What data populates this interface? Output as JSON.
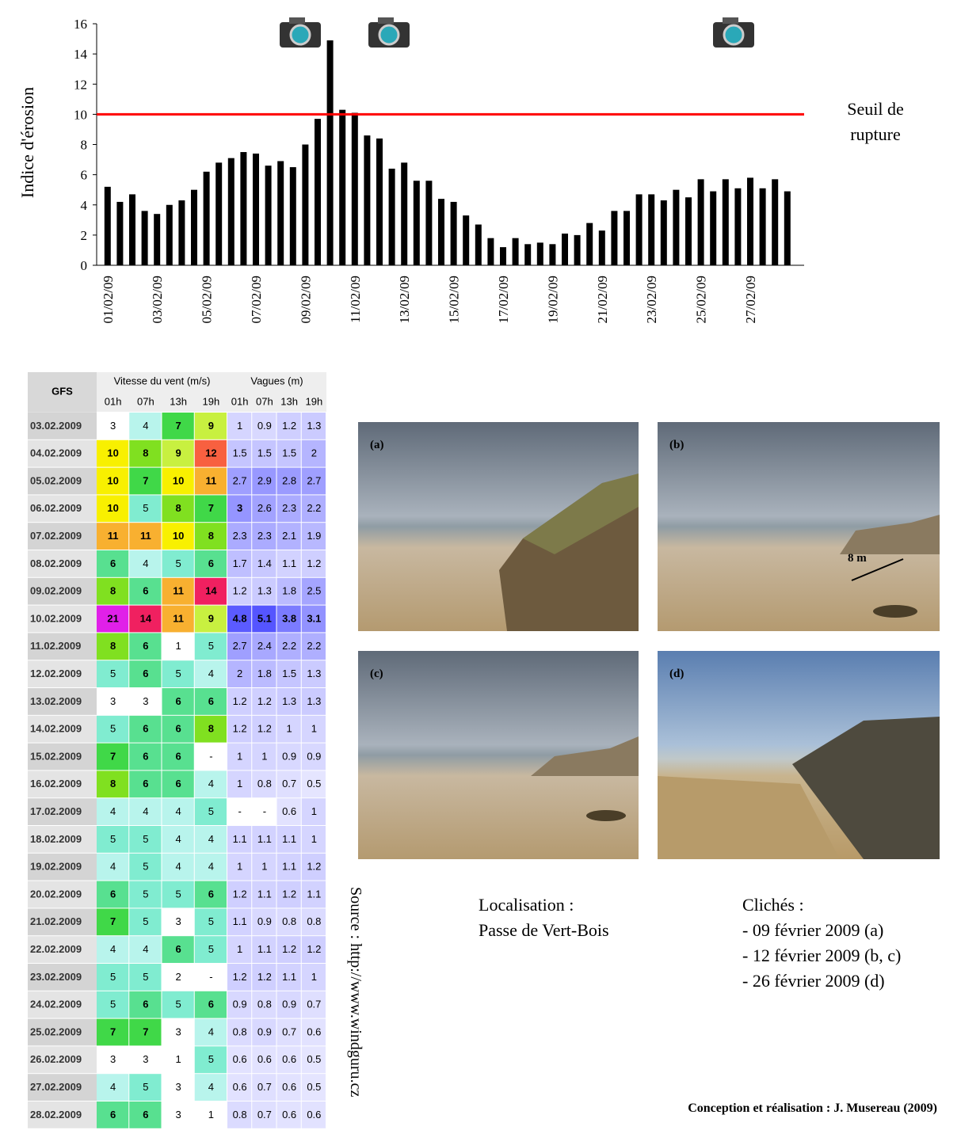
{
  "chart_data": {
    "type": "bar",
    "ylabel": "Indice d'érosion",
    "categories": [
      "01/02/09",
      null,
      null,
      null,
      "03/02/09",
      null,
      null,
      null,
      "05/02/09",
      null,
      null,
      null,
      "07/02/09",
      null,
      null,
      null,
      "09/02/09",
      null,
      null,
      null,
      "11/02/09",
      null,
      null,
      null,
      "13/02/09",
      null,
      null,
      null,
      "15/02/09",
      null,
      null,
      null,
      "17/02/09",
      null,
      null,
      null,
      "19/02/09",
      null,
      null,
      null,
      "21/02/09",
      null,
      null,
      null,
      "23/02/09",
      null,
      null,
      null,
      "25/02/09",
      null,
      null,
      null,
      "27/02/09",
      null,
      null,
      null
    ],
    "values": [
      5.2,
      4.2,
      4.7,
      3.6,
      3.4,
      4.0,
      4.3,
      5.0,
      6.2,
      6.8,
      7.1,
      7.5,
      7.4,
      6.6,
      6.9,
      6.5,
      8.0,
      9.7,
      14.9,
      10.3,
      10.1,
      8.6,
      8.4,
      6.4,
      6.8,
      5.6,
      5.6,
      4.4,
      4.2,
      3.3,
      2.7,
      1.8,
      1.2,
      1.8,
      1.4,
      1.5,
      1.4,
      2.1,
      2.0,
      2.8,
      2.3,
      3.6,
      3.6,
      4.7,
      4.7,
      4.3,
      5.0,
      4.5,
      5.7,
      4.9,
      5.7,
      5.1,
      5.8,
      5.1,
      5.7,
      4.9
    ],
    "color": "#000000",
    "ylim": [
      0,
      16
    ],
    "yticks": [
      0,
      2,
      4,
      6,
      8,
      10,
      12,
      14,
      16
    ],
    "threshold": {
      "value": 10,
      "color": "#ff0000",
      "label_lines": [
        "Seuil de",
        "rupture"
      ]
    }
  },
  "table": {
    "corner": "GFS",
    "groups": [
      "Vitesse du vent (m/s)",
      "Vagues (m)"
    ],
    "hours": [
      "01h",
      "07h",
      "13h",
      "19h"
    ],
    "rows": [
      {
        "date": "03.02.2009",
        "wind": [
          3,
          4,
          7,
          9
        ],
        "waves": [
          1,
          0.9,
          1.2,
          1.3
        ]
      },
      {
        "date": "04.02.2009",
        "wind": [
          10,
          8,
          9,
          12
        ],
        "waves": [
          1.5,
          1.5,
          1.5,
          2
        ]
      },
      {
        "date": "05.02.2009",
        "wind": [
          10,
          7,
          10,
          11
        ],
        "waves": [
          2.7,
          2.9,
          2.8,
          2.7
        ]
      },
      {
        "date": "06.02.2009",
        "wind": [
          10,
          5,
          8,
          7
        ],
        "waves": [
          3,
          2.6,
          2.3,
          2.2
        ]
      },
      {
        "date": "07.02.2009",
        "wind": [
          11,
          11,
          10,
          8
        ],
        "waves": [
          2.3,
          2.3,
          2.1,
          1.9
        ]
      },
      {
        "date": "08.02.2009",
        "wind": [
          6,
          4,
          5,
          6
        ],
        "waves": [
          1.7,
          1.4,
          1.1,
          1.2
        ]
      },
      {
        "date": "09.02.2009",
        "wind": [
          8,
          6,
          11,
          14
        ],
        "waves": [
          1.2,
          1.3,
          1.8,
          2.5
        ]
      },
      {
        "date": "10.02.2009",
        "wind": [
          21,
          14,
          11,
          9
        ],
        "waves": [
          4.8,
          5.1,
          3.8,
          3.1
        ]
      },
      {
        "date": "11.02.2009",
        "wind": [
          8,
          6,
          1,
          5
        ],
        "waves": [
          2.7,
          2.4,
          2.2,
          2.2
        ]
      },
      {
        "date": "12.02.2009",
        "wind": [
          5,
          6,
          5,
          4
        ],
        "waves": [
          2,
          1.8,
          1.5,
          1.3
        ]
      },
      {
        "date": "13.02.2009",
        "wind": [
          3,
          3,
          6,
          6
        ],
        "waves": [
          1.2,
          1.2,
          1.3,
          1.3
        ]
      },
      {
        "date": "14.02.2009",
        "wind": [
          5,
          6,
          6,
          8
        ],
        "waves": [
          1.2,
          1.2,
          1,
          1
        ]
      },
      {
        "date": "15.02.2009",
        "wind": [
          7,
          6,
          6,
          "-"
        ],
        "waves": [
          1,
          1,
          0.9,
          0.9
        ]
      },
      {
        "date": "16.02.2009",
        "wind": [
          8,
          6,
          6,
          4
        ],
        "waves": [
          1,
          0.8,
          0.7,
          0.5
        ]
      },
      {
        "date": "17.02.2009",
        "wind": [
          4,
          4,
          4,
          5
        ],
        "waves": [
          "-",
          "-",
          0.6,
          1
        ]
      },
      {
        "date": "18.02.2009",
        "wind": [
          5,
          5,
          4,
          4
        ],
        "waves": [
          1.1,
          1.1,
          1.1,
          1
        ]
      },
      {
        "date": "19.02.2009",
        "wind": [
          4,
          5,
          4,
          4
        ],
        "waves": [
          1,
          1,
          1.1,
          1.2
        ]
      },
      {
        "date": "20.02.2009",
        "wind": [
          6,
          5,
          5,
          6
        ],
        "waves": [
          1.2,
          1.1,
          1.2,
          1.1
        ]
      },
      {
        "date": "21.02.2009",
        "wind": [
          7,
          5,
          3,
          5
        ],
        "waves": [
          1.1,
          0.9,
          0.8,
          0.8
        ]
      },
      {
        "date": "22.02.2009",
        "wind": [
          4,
          4,
          6,
          5
        ],
        "waves": [
          1,
          1.1,
          1.2,
          1.2
        ]
      },
      {
        "date": "23.02.2009",
        "wind": [
          5,
          5,
          2,
          "-"
        ],
        "waves": [
          1.2,
          1.2,
          1.1,
          1
        ]
      },
      {
        "date": "24.02.2009",
        "wind": [
          5,
          6,
          5,
          6
        ],
        "waves": [
          0.9,
          0.8,
          0.9,
          0.7
        ]
      },
      {
        "date": "25.02.2009",
        "wind": [
          7,
          7,
          3,
          4
        ],
        "waves": [
          0.8,
          0.9,
          0.7,
          0.6
        ]
      },
      {
        "date": "26.02.2009",
        "wind": [
          3,
          3,
          1,
          5
        ],
        "waves": [
          0.6,
          0.6,
          0.6,
          0.5
        ]
      },
      {
        "date": "27.02.2009",
        "wind": [
          4,
          5,
          3,
          4
        ],
        "waves": [
          0.6,
          0.7,
          0.6,
          0.5
        ]
      },
      {
        "date": "28.02.2009",
        "wind": [
          6,
          6,
          3,
          1
        ],
        "waves": [
          0.8,
          0.7,
          0.6,
          0.6
        ]
      }
    ]
  },
  "photos": [
    "(a)",
    "(b)",
    "(c)",
    "(d)"
  ],
  "photo_annotation": "8 m",
  "source": "Source : http://www.windguru.cz",
  "location": {
    "title": "Localisation :",
    "name": "Passe de Vert-Bois"
  },
  "photos_caption": {
    "title": "Clichés :",
    "items": [
      "- 09 février 2009 (a)",
      "- 12 février 2009 (b, c)",
      "- 26 février 2009 (d)"
    ]
  },
  "credit": "Conception et réalisation : J. Musereau (2009)"
}
